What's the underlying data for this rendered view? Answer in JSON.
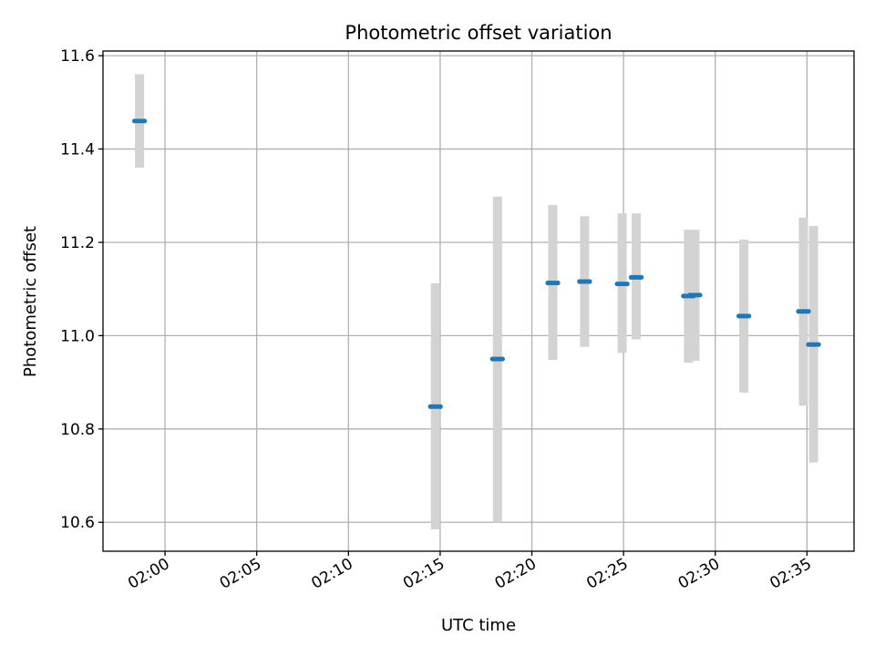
{
  "chart_data": {
    "type": "scatter",
    "title": "Photometric offset variation",
    "xlabel": "UTC time",
    "ylabel": "Photometric offset",
    "xlim": [
      "01:56:37",
      "02:37:34"
    ],
    "ylim": [
      10.538,
      11.61
    ],
    "x_ticks": [
      "02:00",
      "02:05",
      "02:10",
      "02:15",
      "02:20",
      "02:25",
      "02:30",
      "02:35"
    ],
    "y_ticks": [
      10.6,
      10.8,
      11.0,
      11.2,
      11.4,
      11.6
    ],
    "grid": true,
    "colors": {
      "points": "#1f77b4",
      "error_bars": "#d3d3d3",
      "grid": "#b0b0b0",
      "axes": "#000000"
    },
    "groups": [
      {
        "time_start": "01:58:20",
        "time_end": "01:58:53",
        "value": 11.46,
        "err_low": 11.36,
        "err_high": 11.56
      },
      {
        "time_start": "02:14:28",
        "time_end": "02:15:01",
        "value": 10.848,
        "err_low": 10.585,
        "err_high": 11.112
      },
      {
        "time_start": "02:17:51",
        "time_end": "02:18:24",
        "value": 10.95,
        "err_low": 10.6,
        "err_high": 11.298
      },
      {
        "time_start": "02:20:52",
        "time_end": "02:21:25",
        "value": 11.113,
        "err_low": 10.948,
        "err_high": 11.28
      },
      {
        "time_start": "02:22:36",
        "time_end": "02:23:09",
        "value": 11.116,
        "err_low": 10.976,
        "err_high": 11.256
      },
      {
        "time_start": "02:24:39",
        "time_end": "02:25:12",
        "value": 11.111,
        "err_low": 10.963,
        "err_high": 11.262
      },
      {
        "time_start": "02:25:25",
        "time_end": "02:25:58",
        "value": 11.125,
        "err_low": 10.992,
        "err_high": 11.262
      },
      {
        "time_start": "02:28:16",
        "time_end": "02:28:49",
        "value": 11.085,
        "err_low": 10.942,
        "err_high": 11.227
      },
      {
        "time_start": "02:28:37",
        "time_end": "02:29:10",
        "value": 11.087,
        "err_low": 10.946,
        "err_high": 11.227
      },
      {
        "time_start": "02:31:17",
        "time_end": "02:31:50",
        "value": 11.042,
        "err_low": 10.878,
        "err_high": 11.206
      },
      {
        "time_start": "02:34:32",
        "time_end": "02:35:05",
        "value": 11.052,
        "err_low": 10.85,
        "err_high": 11.253
      },
      {
        "time_start": "02:35:05",
        "time_end": "02:35:38",
        "value": 10.981,
        "err_low": 10.728,
        "err_high": 11.235
      }
    ]
  }
}
